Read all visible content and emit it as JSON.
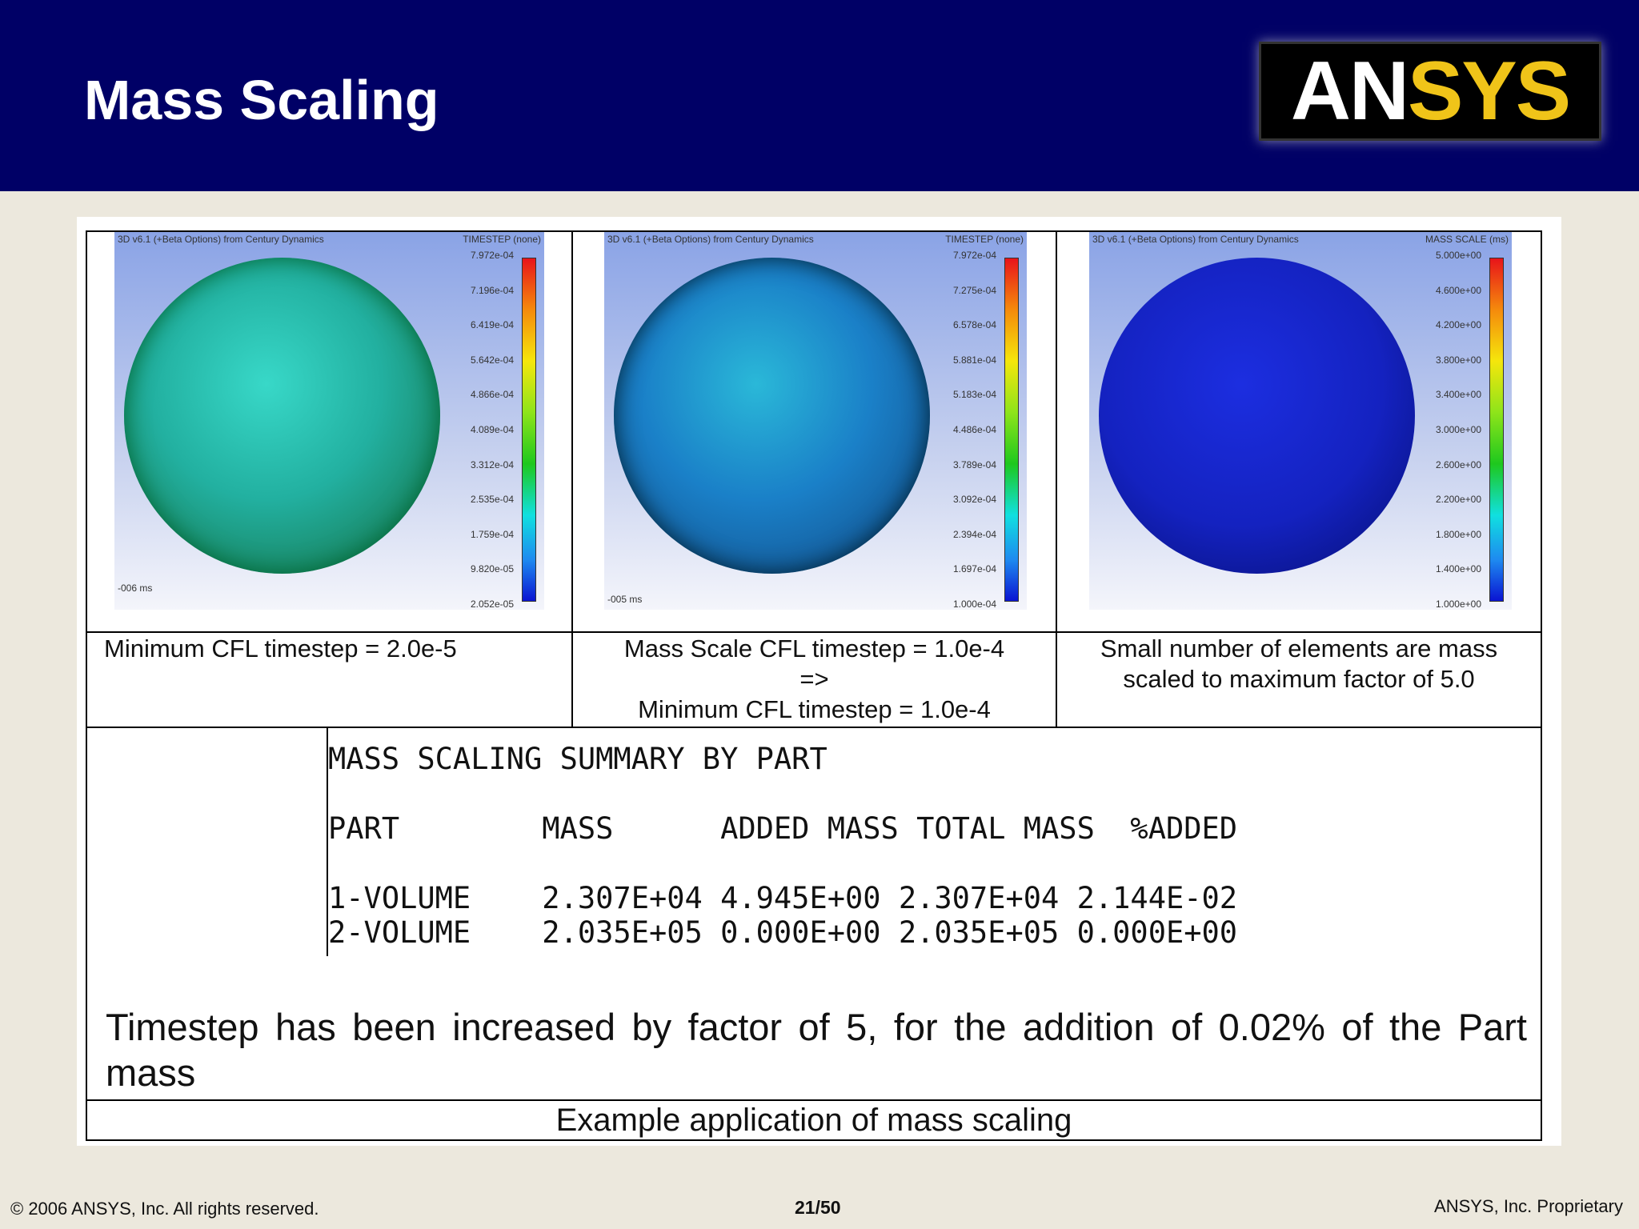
{
  "header": {
    "title": "Mass Scaling",
    "logo_text": "ANSYS"
  },
  "panels": [
    {
      "banner": "3D v6.1 (+Beta Options) from Century Dynamics",
      "legend_title": "TIMESTEP (none)",
      "ticks": [
        "7.972e-04",
        "7.196e-04",
        "6.419e-04",
        "5.642e-04",
        "4.866e-04",
        "4.089e-04",
        "3.312e-04",
        "2.535e-04",
        "1.759e-04",
        "9.820e-05",
        "2.052e-05"
      ],
      "time": "-006 ms",
      "caption": [
        "Minimum CFL timestep = 2.0e-5"
      ]
    },
    {
      "banner": "3D v6.1 (+Beta Options) from Century Dynamics",
      "legend_title": "TIMESTEP (none)",
      "ticks": [
        "7.972e-04",
        "7.275e-04",
        "6.578e-04",
        "5.881e-04",
        "5.183e-04",
        "4.486e-04",
        "3.789e-04",
        "3.092e-04",
        "2.394e-04",
        "1.697e-04",
        "1.000e-04"
      ],
      "time": "-005 ms",
      "caption": [
        "Mass Scale CFL timestep = 1.0e-4",
        "=>",
        "Minimum CFL timestep = 1.0e-4"
      ]
    },
    {
      "banner": "3D v6.1 (+Beta Options) from Century Dynamics",
      "legend_title": "MASS SCALE (ms)",
      "ticks": [
        "5.000e+00",
        "4.600e+00",
        "4.200e+00",
        "3.800e+00",
        "3.400e+00",
        "3.000e+00",
        "2.600e+00",
        "2.200e+00",
        "1.800e+00",
        "1.400e+00",
        "1.000e+00"
      ],
      "time": "",
      "caption": [
        "Small number of elements are mass",
        "scaled to maximum factor of 5.0"
      ]
    }
  ],
  "summary": {
    "title": "MASS SCALING SUMMARY BY PART",
    "header": "PART        MASS      ADDED MASS TOTAL MASS  %ADDED",
    "rows": [
      "1-VOLUME    2.307E+04 4.945E+00 2.307E+04 2.144E-02",
      "2-VOLUME    2.035E+05 0.000E+00 2.035E+05 0.000E+00"
    ]
  },
  "conclusion": "Timestep has been increased by factor of 5, for the addition of 0.02% of the Part mass",
  "table_caption": "Example application of mass scaling",
  "footer": {
    "copyright": "© 2006 ANSYS, Inc.  All rights reserved.",
    "page": "21/50",
    "proprietary": "ANSYS, Inc. Proprietary"
  }
}
